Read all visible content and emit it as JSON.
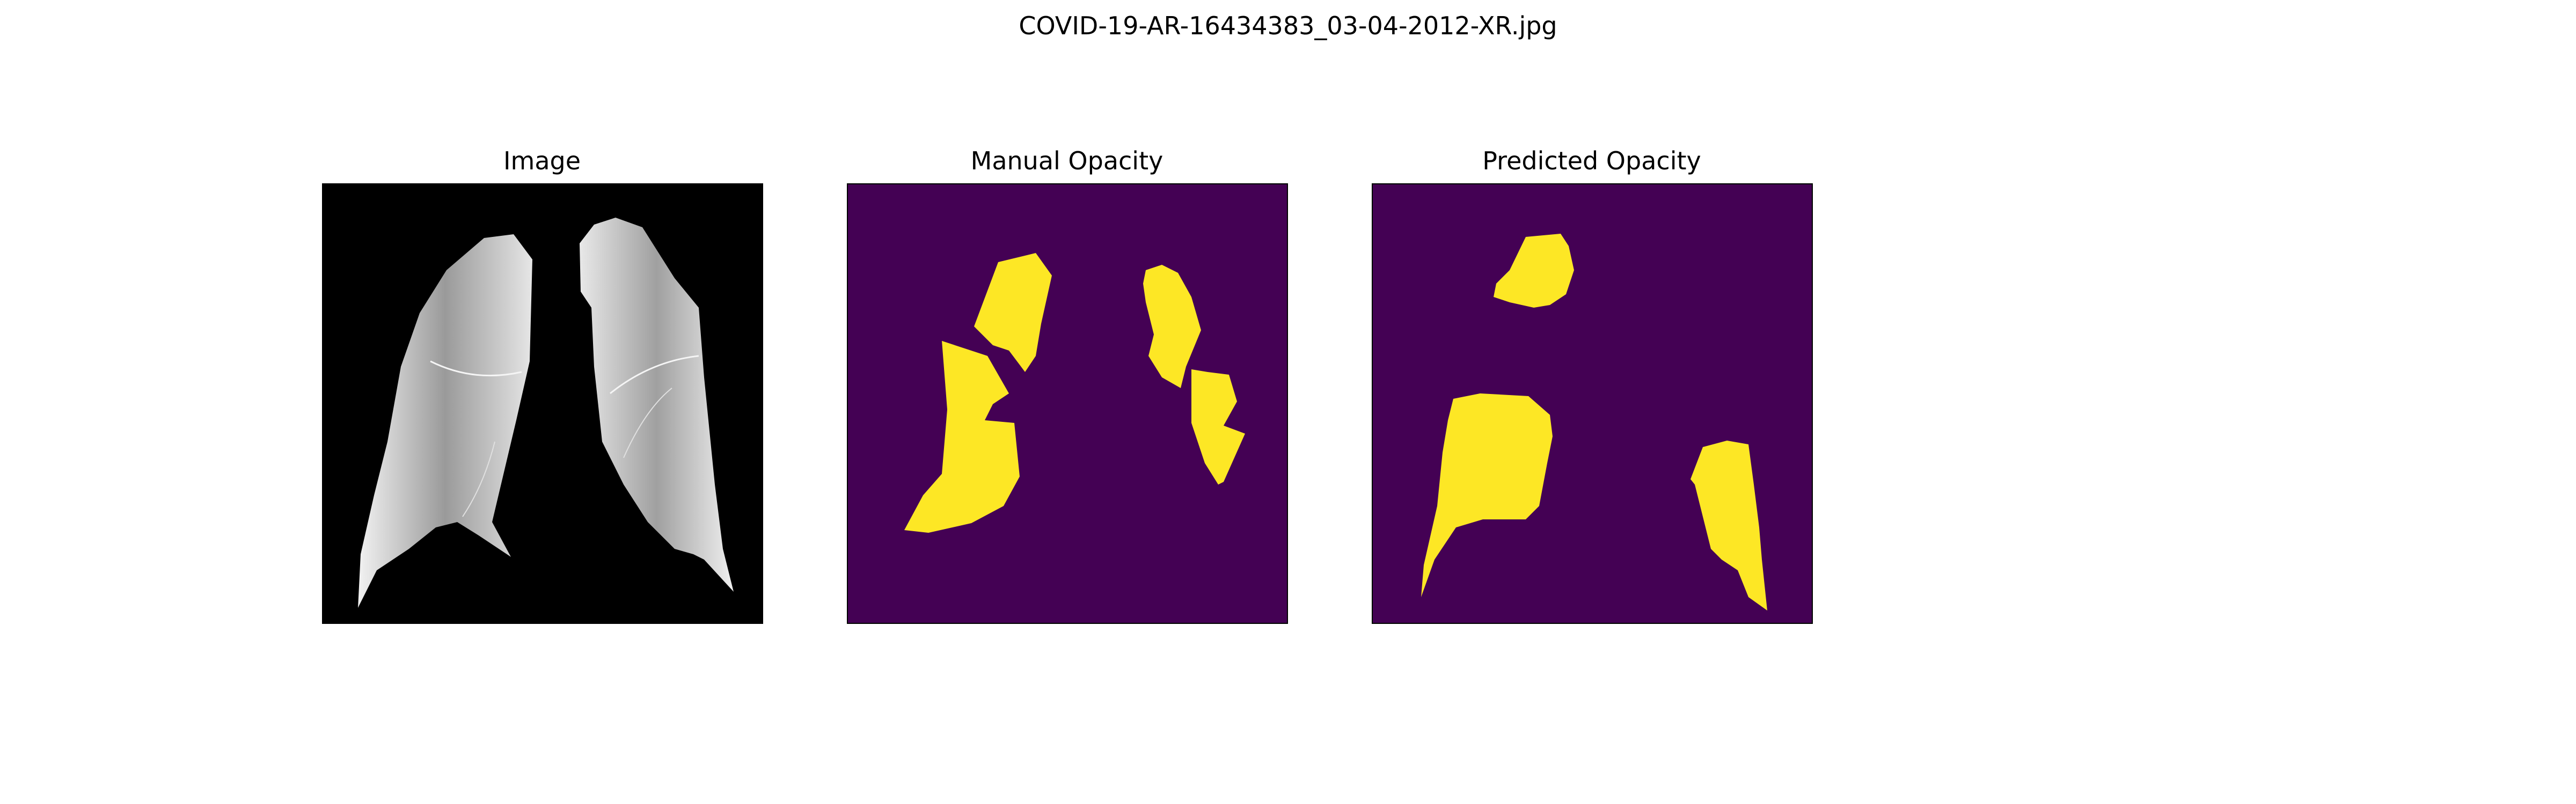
{
  "figure": {
    "title": "COVID-19-AR-16434383_03-04-2012-XR.jpg"
  },
  "panels": [
    {
      "title": "Image",
      "background": "#000000",
      "foreground": "#d9d9d9"
    },
    {
      "title": "Manual Opacity",
      "background": "#440154",
      "foreground": "#fde725"
    },
    {
      "title": "Predicted Opacity",
      "background": "#440154",
      "foreground": "#fde725"
    }
  ]
}
